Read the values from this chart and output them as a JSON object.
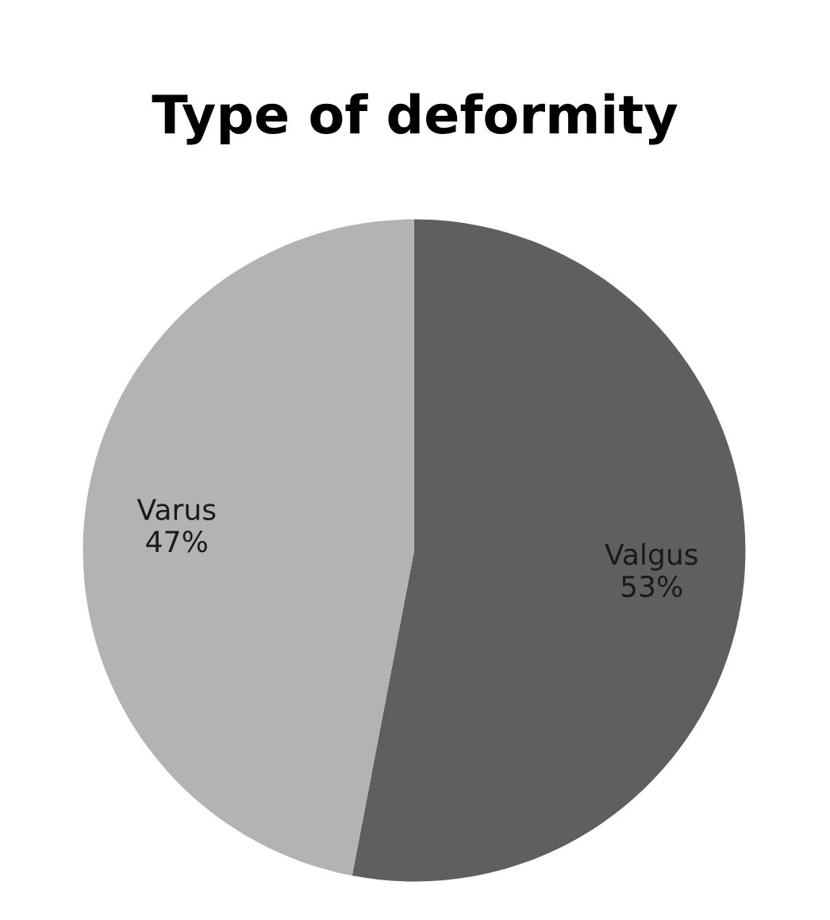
{
  "chart_data": {
    "type": "pie",
    "title": "Type of deformity",
    "categories": [
      "Valgus",
      "Varus"
    ],
    "values": [
      53,
      47
    ],
    "colors": [
      "#5f5f5f",
      "#b3b3b3"
    ],
    "value_labels": [
      "53%",
      "47%"
    ],
    "legend": false
  }
}
